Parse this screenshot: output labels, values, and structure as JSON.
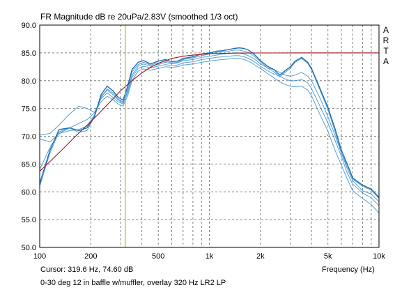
{
  "chart_data": {
    "type": "line",
    "title": "FR Magnitude dB re 20uPa/2.83V (smoothed 1/3 oct)",
    "watermark_letters": [
      "A",
      "R",
      "T",
      "A"
    ],
    "xlabel": "Frequency (Hz)",
    "x_scale": "log",
    "xlim": [
      100,
      10000
    ],
    "ylim": [
      50,
      90
    ],
    "x_ticks": [
      {
        "value": 100,
        "label": "100"
      },
      {
        "value": 200,
        "label": "200"
      },
      {
        "value": 500,
        "label": "500"
      },
      {
        "value": 1000,
        "label": "1k"
      },
      {
        "value": 2000,
        "label": "2k"
      },
      {
        "value": 5000,
        "label": "5k"
      },
      {
        "value": 10000,
        "label": "10k"
      }
    ],
    "y_ticks": [
      "50.0",
      "55.0",
      "60.0",
      "65.0",
      "70.0",
      "75.0",
      "80.0",
      "85.0",
      "90.0"
    ],
    "grid": true,
    "cursor_text": "Cursor: 319.6 Hz, 74.60 dB",
    "cursor_frequency": 319.6,
    "caption": "0-30 deg 12 in baffle w/muffler, overlay 320 Hz LR2 LP",
    "colors": {
      "measurement": "#3a8fd0",
      "measurement_dark": "#1f6fb4",
      "overlay": "#a4141c",
      "cursor": "#c9b200",
      "grid": "#808080",
      "frame": "#000000"
    },
    "series": [
      {
        "x": [
          100,
          115,
          130,
          150,
          170,
          190,
          210,
          230,
          250,
          270,
          290,
          310,
          330,
          350,
          380,
          410,
          450,
          500,
          550,
          600,
          650,
          700,
          800,
          900,
          1000,
          1100,
          1200,
          1300,
          1400,
          1500,
          1600,
          1700,
          1800,
          1900,
          2000,
          2200,
          2400,
          2600,
          2800,
          3000,
          3200,
          3500,
          3800,
          4000,
          4500,
          5000,
          5500,
          6000,
          6500,
          7000,
          8000,
          9000,
          10000
        ],
        "y": [
          61.5,
          67.5,
          71.2,
          71.5,
          71,
          71.5,
          73.5,
          77.5,
          79,
          78.2,
          77,
          76.5,
          79,
          82,
          83.3,
          83.6,
          83,
          83.5,
          83.8,
          83.4,
          83.5,
          84,
          84.3,
          84.8,
          85,
          85.3,
          85.4,
          85.6,
          85.8,
          85.9,
          85.8,
          85.5,
          85,
          84.3,
          83.6,
          82.6,
          82,
          81,
          81.8,
          82.5,
          83.5,
          84.2,
          83.3,
          82.2,
          78.5,
          75.2,
          71.4,
          67.5,
          65,
          62.5,
          61.2,
          60.5,
          59
        ]
      },
      {
        "x": [
          100,
          115,
          130,
          150,
          170,
          190,
          210,
          230,
          250,
          270,
          290,
          310,
          330,
          350,
          380,
          410,
          450,
          500,
          550,
          600,
          650,
          700,
          800,
          900,
          1000,
          1100,
          1200,
          1300,
          1400,
          1500,
          1600,
          1700,
          1800,
          1900,
          2000,
          2200,
          2400,
          2600,
          2800,
          3000,
          3200,
          3500,
          3800,
          4000,
          4500,
          5000,
          5500,
          6000,
          6500,
          7000,
          8000,
          9000,
          10000
        ],
        "y": [
          61,
          67,
          70.8,
          71.5,
          70.7,
          71,
          73.5,
          77,
          78.5,
          77.8,
          76.7,
          76.2,
          78.7,
          81.6,
          82.9,
          83.3,
          82.8,
          83.2,
          83.5,
          83.2,
          83.3,
          83.8,
          84.1,
          84.5,
          84.8,
          85.1,
          85.2,
          85.3,
          85.5,
          85.5,
          85.3,
          85.1,
          84.6,
          84,
          83.4,
          82.3,
          81.6,
          80.7,
          81.5,
          82.2,
          83.3,
          84,
          83.1,
          82,
          78.2,
          74.8,
          70.9,
          67,
          64.7,
          62.3,
          61,
          60.3,
          58.8
        ]
      },
      {
        "x": [
          100,
          115,
          130,
          150,
          170,
          190,
          210,
          230,
          250,
          270,
          290,
          310,
          330,
          350,
          380,
          410,
          450,
          500,
          550,
          600,
          650,
          700,
          800,
          900,
          1000,
          1100,
          1200,
          1300,
          1400,
          1500,
          1600,
          1700,
          1800,
          1900,
          2000,
          2200,
          2400,
          2600,
          2800,
          3000,
          3200,
          3500,
          3800,
          4000,
          4500,
          5000,
          5500,
          6000,
          6500,
          7000,
          8000,
          9000,
          10000
        ],
        "y": [
          64,
          68,
          70.5,
          71,
          71.2,
          71.8,
          73.8,
          77.2,
          78.3,
          77.5,
          76.5,
          76,
          78.2,
          81,
          82.6,
          83,
          82.6,
          82.9,
          83.3,
          83,
          83.2,
          83.6,
          83.8,
          84.2,
          84.4,
          84.6,
          84.8,
          84.9,
          85,
          85,
          84.8,
          84.5,
          84.1,
          83.6,
          83,
          82.3,
          82,
          81.5,
          81,
          80.8,
          81,
          81.5,
          80.8,
          80,
          76.8,
          73.5,
          70.2,
          67,
          64.2,
          62,
          60.2,
          59.6,
          58.2
        ]
      },
      {
        "x": [
          100,
          115,
          130,
          150,
          170,
          190,
          210,
          230,
          250,
          270,
          290,
          310,
          330,
          350,
          380,
          410,
          450,
          500,
          550,
          600,
          650,
          700,
          800,
          900,
          1000,
          1100,
          1200,
          1300,
          1400,
          1500,
          1600,
          1700,
          1800,
          1900,
          2000,
          2200,
          2400,
          2600,
          2800,
          3000,
          3200,
          3500,
          3800,
          4000,
          4500,
          5000,
          5500,
          6000,
          6500,
          7000,
          8000,
          9000,
          10000
        ],
        "y": [
          69.5,
          69,
          70.5,
          71.5,
          72.3,
          73,
          74.2,
          76.8,
          77.8,
          77,
          76.2,
          75.8,
          77.8,
          80.6,
          82.2,
          82.6,
          82.3,
          82.6,
          82.9,
          82.7,
          82.8,
          83.2,
          83.4,
          83.8,
          84,
          84.2,
          84.3,
          84.4,
          84.5,
          84.5,
          84.3,
          84,
          83.6,
          83.1,
          82.6,
          81.8,
          81.2,
          80.8,
          80.3,
          80,
          80,
          80.2,
          79.6,
          78.6,
          75.3,
          72.4,
          69.3,
          66.4,
          63.4,
          61.4,
          59.8,
          58.9,
          57.5
        ]
      },
      {
        "x": [
          100,
          115,
          130,
          150,
          170,
          190,
          210,
          230,
          250,
          270,
          290,
          310,
          330,
          350,
          380,
          410,
          450,
          500,
          550,
          600,
          650,
          700,
          800,
          900,
          1000,
          1100,
          1200,
          1300,
          1400,
          1500,
          1600,
          1700,
          1800,
          1900,
          2000,
          2200,
          2400,
          2600,
          2800,
          3000,
          3200,
          3500,
          3800,
          4000,
          4500,
          5000,
          5500,
          6000,
          6500,
          7000,
          8000,
          9000,
          10000
        ],
        "y": [
          70.2,
          70.5,
          72,
          74,
          75.4,
          75,
          74.3,
          76.2,
          77.2,
          76.6,
          75.8,
          75.4,
          77.3,
          80,
          81.7,
          82.1,
          81.9,
          82.2,
          82.5,
          82.4,
          82.5,
          82.8,
          83,
          83.3,
          83.5,
          83.7,
          83.8,
          83.9,
          84,
          84,
          83.8,
          83.5,
          83.1,
          82.6,
          82.2,
          81.3,
          80.5,
          79.8,
          79.3,
          79,
          78.9,
          79,
          78.3,
          77.3,
          73.8,
          70.9,
          67.5,
          64.8,
          62.3,
          60.2,
          58.8,
          57.7,
          56.2
        ]
      }
    ],
    "overlay": {
      "name": "320 Hz LR2 LP",
      "x": [
        100,
        120,
        140,
        160,
        180,
        200,
        230,
        260,
        300,
        350,
        400,
        450,
        500,
        600,
        700,
        800,
        900,
        1000,
        1200,
        1500,
        2000,
        2500,
        3000,
        4000,
        5000,
        6000,
        8000,
        10000
      ],
      "y": [
        63.7,
        66,
        68,
        69.8,
        71.3,
        72.6,
        74.5,
        76.2,
        78.2,
        80,
        81.4,
        82.4,
        83.1,
        84,
        84.4,
        84.6,
        84.75,
        84.85,
        84.92,
        84.96,
        84.98,
        84.99,
        85,
        85,
        85,
        85,
        85,
        85
      ]
    }
  }
}
